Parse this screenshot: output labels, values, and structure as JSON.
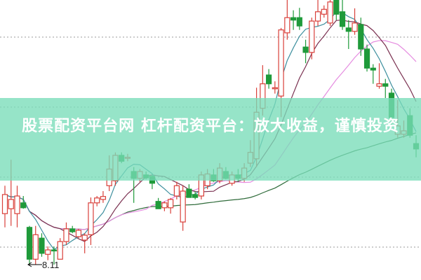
{
  "banner": {
    "text": "股票配资平台网 杠杆配资平台：放大收益，谨慎投资"
  },
  "chart_data": {
    "type": "candlestick",
    "annotations": [
      {
        "label": "8.11",
        "meaning": "lowest price marker"
      }
    ],
    "colors": {
      "up": "#d9403a",
      "down": "#1f9a3a",
      "ma5": "#3d8f9e",
      "ma10": "#7a3050",
      "ma20": "#e58ce0",
      "ma60": "#2f6b3a",
      "banner": "#78dcb9"
    },
    "moving_averages": [
      "MA5",
      "MA10",
      "MA20",
      "MA60"
    ],
    "grid": "dotted horizontal",
    "ylim": [
      8.0,
      13.6
    ],
    "ohlc": [
      [
        9.15,
        9.72,
        8.87,
        9.54
      ],
      [
        9.25,
        10.25,
        8.9,
        9.44
      ],
      [
        9.15,
        9.72,
        8.87,
        9.51
      ],
      [
        9.37,
        9.51,
        9.25,
        9.27
      ],
      [
        8.87,
        8.9,
        8.11,
        8.22
      ],
      [
        8.22,
        8.9,
        8.11,
        8.72
      ],
      [
        8.65,
        8.75,
        8.27,
        8.34
      ],
      [
        8.32,
        8.48,
        8.2,
        8.41
      ],
      [
        8.41,
        8.48,
        8.11,
        8.4
      ],
      [
        8.22,
        8.65,
        8.22,
        8.58
      ],
      [
        8.58,
        8.97,
        8.51,
        8.84
      ],
      [
        8.84,
        8.9,
        8.75,
        8.78
      ],
      [
        8.68,
        8.84,
        8.65,
        8.81
      ],
      [
        8.61,
        8.75,
        8.34,
        8.71
      ],
      [
        8.72,
        9.48,
        8.51,
        9.37
      ],
      [
        9.37,
        9.51,
        9.3,
        9.47
      ],
      [
        9.44,
        9.61,
        9.37,
        9.5
      ],
      [
        9.72,
        10.34,
        9.61,
        10.06
      ],
      [
        9.82,
        10.4,
        9.72,
        10.34
      ],
      [
        10.34,
        10.4,
        10.18,
        10.22
      ],
      [
        10.3,
        10.37,
        10.22,
        10.3
      ],
      [
        10.01,
        10.1,
        9.37,
        9.87
      ],
      [
        9.87,
        10.06,
        9.8,
        10.01
      ],
      [
        9.94,
        10.01,
        9.85,
        9.88
      ],
      [
        9.91,
        9.94,
        9.65,
        9.77
      ],
      [
        9.4,
        9.47,
        9.25,
        9.25
      ],
      [
        9.27,
        9.4,
        9.2,
        9.37
      ],
      [
        9.27,
        9.47,
        9.15,
        9.44
      ],
      [
        9.51,
        9.8,
        9.44,
        9.72
      ],
      [
        8.98,
        9.72,
        8.8,
        9.61
      ],
      [
        9.65,
        9.75,
        9.48,
        9.48
      ],
      [
        9.54,
        9.61,
        9.44,
        9.48
      ],
      [
        9.51,
        10.01,
        9.44,
        9.94
      ],
      [
        9.72,
        10.06,
        9.65,
        9.96
      ],
      [
        9.94,
        10.06,
        9.8,
        9.82
      ],
      [
        9.82,
        10.18,
        9.77,
        10.08
      ],
      [
        10.01,
        10.1,
        9.85,
        9.87
      ],
      [
        9.77,
        10.01,
        9.72,
        9.94
      ],
      [
        9.94,
        10.06,
        9.8,
        9.87
      ],
      [
        9.87,
        10.18,
        9.8,
        10.08
      ],
      [
        10.18,
        10.65,
        10.1,
        10.4
      ],
      [
        10.27,
        11.72,
        10.1,
        11.22
      ],
      [
        11.3,
        12.18,
        11.15,
        11.8
      ],
      [
        11.98,
        12.1,
        11.7,
        11.8
      ],
      [
        11.72,
        11.85,
        11.6,
        11.72
      ],
      [
        11.55,
        12.94,
        11.12,
        12.9
      ],
      [
        12.84,
        13.51,
        12.7,
        13.15
      ],
      [
        13.15,
        13.3,
        12.9,
        13.1
      ],
      [
        13.15,
        13.35,
        12.9,
        12.98
      ],
      [
        12.55,
        12.7,
        12.22,
        12.44
      ],
      [
        12.44,
        13.15,
        12.3,
        13.08
      ],
      [
        13.08,
        13.51,
        12.98,
        13.27
      ],
      [
        13.22,
        13.4,
        13.15,
        13.32
      ],
      [
        13.04,
        13.51,
        12.98,
        13.47
      ],
      [
        13.51,
        13.51,
        13.1,
        13.22
      ],
      [
        13.27,
        13.51,
        12.9,
        12.97
      ],
      [
        12.94,
        13.1,
        12.51,
        12.87
      ],
      [
        12.87,
        13.34,
        12.8,
        13.04
      ],
      [
        13.01,
        13.15,
        12.37,
        12.51
      ],
      [
        12.51,
        12.6,
        12.05,
        12.12
      ],
      [
        12.12,
        12.2,
        11.8,
        12.08
      ],
      [
        11.75,
        12.22,
        11.7,
        11.8
      ],
      [
        11.8,
        11.9,
        11.51,
        11.75
      ],
      [
        11.61,
        11.7,
        10.94,
        11.11
      ],
      [
        10.77,
        11.47,
        10.7,
        10.94
      ],
      [
        10.77,
        11.05,
        10.7,
        10.84
      ],
      [
        11.15,
        11.3,
        10.7,
        10.75
      ],
      [
        10.58,
        10.75,
        10.3,
        10.47
      ]
    ]
  }
}
